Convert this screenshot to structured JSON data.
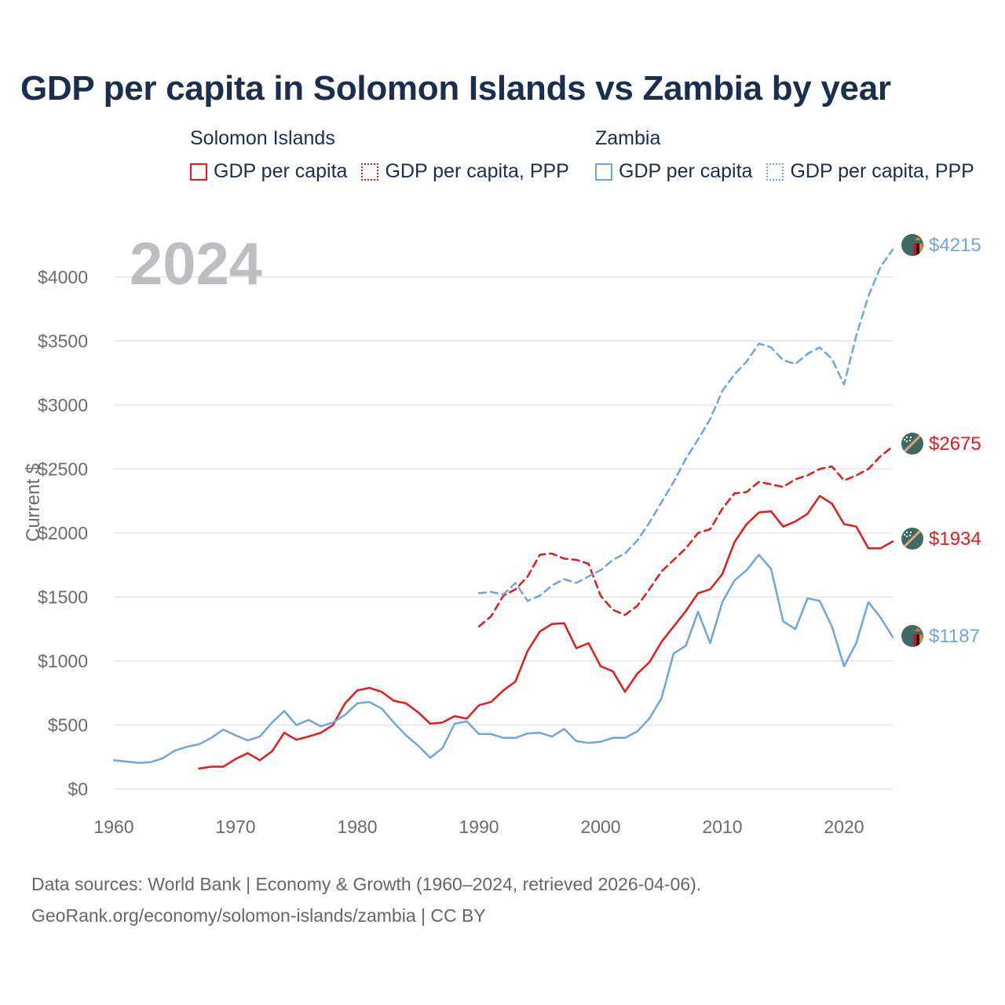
{
  "title": "GDP per capita in Solomon Islands vs Zambia by year",
  "legend": {
    "groups": [
      {
        "name": "Solomon Islands",
        "items": [
          {
            "label": "GDP per capita",
            "style": "solid",
            "color": "#e8191a"
          },
          {
            "label": "GDP per capita, PPP",
            "style": "dotted",
            "color": "#e8191a"
          }
        ]
      },
      {
        "name": "Zambia",
        "items": [
          {
            "label": "GDP per capita",
            "style": "solid",
            "color": "#6ea6de"
          },
          {
            "label": "GDP per capita, PPP",
            "style": "dotted",
            "color": "#6ea6de"
          }
        ]
      }
    ]
  },
  "year_label": "2024",
  "footer": {
    "line1": "Data sources: World Bank | Economy & Growth (1960–2024, retrieved 2026-04-06).",
    "line2": "GeoRank.org/economy/solomon-islands/zambia | CC BY"
  },
  "chart_data": {
    "type": "line",
    "ylabel": "Current $",
    "xlabel": "",
    "xlim": [
      1960,
      2024
    ],
    "ylim": [
      0,
      4250
    ],
    "x_ticks": [
      1960,
      1970,
      1980,
      1990,
      2000,
      2010,
      2020
    ],
    "y_ticks": [
      0,
      500,
      1000,
      1500,
      2000,
      2500,
      3000,
      3500,
      4000
    ],
    "y_tick_labels": [
      "$0",
      "$500",
      "$1000",
      "$1500",
      "$2000",
      "$2500",
      "$3000",
      "$3500",
      "$4000"
    ],
    "grid": true,
    "series": [
      {
        "name": "Solomon Islands GDP per capita",
        "country": "Solomon Islands",
        "color": "#e8191a",
        "dash": "solid",
        "end_label": "$1934",
        "x": [
          1967,
          1968,
          1969,
          1970,
          1971,
          1972,
          1973,
          1974,
          1975,
          1976,
          1977,
          1978,
          1979,
          1980,
          1981,
          1982,
          1983,
          1984,
          1985,
          1986,
          1987,
          1988,
          1989,
          1990,
          1991,
          1992,
          1993,
          1994,
          1995,
          1996,
          1997,
          1998,
          1999,
          2000,
          2001,
          2002,
          2003,
          2004,
          2005,
          2006,
          2007,
          2008,
          2009,
          2010,
          2011,
          2012,
          2013,
          2014,
          2015,
          2016,
          2017,
          2018,
          2019,
          2020,
          2021,
          2022,
          2023,
          2024
        ],
        "y": [
          160,
          175,
          175,
          235,
          280,
          225,
          295,
          440,
          385,
          410,
          440,
          500,
          670,
          770,
          790,
          760,
          690,
          670,
          600,
          510,
          520,
          570,
          550,
          655,
          680,
          770,
          840,
          1080,
          1230,
          1290,
          1295,
          1100,
          1140,
          960,
          920,
          760,
          900,
          990,
          1150,
          1270,
          1390,
          1530,
          1560,
          1680,
          1930,
          2070,
          2160,
          2170,
          2050,
          2090,
          2150,
          2290,
          2230,
          2070,
          2050,
          1880,
          1880,
          1934
        ]
      },
      {
        "name": "Solomon Islands GDP per capita, PPP",
        "country": "Solomon Islands",
        "color": "#e8191a",
        "dash": "dashed",
        "end_label": "$2675",
        "x": [
          1990,
          1991,
          1992,
          1993,
          1994,
          1995,
          1996,
          1997,
          1998,
          1999,
          2000,
          2001,
          2002,
          2003,
          2004,
          2005,
          2006,
          2007,
          2008,
          2009,
          2010,
          2011,
          2012,
          2013,
          2014,
          2015,
          2016,
          2017,
          2018,
          2019,
          2020,
          2021,
          2022,
          2023,
          2024
        ],
        "y": [
          1270,
          1350,
          1510,
          1560,
          1660,
          1830,
          1840,
          1800,
          1790,
          1760,
          1510,
          1400,
          1360,
          1430,
          1560,
          1700,
          1790,
          1880,
          2000,
          2030,
          2190,
          2310,
          2320,
          2400,
          2380,
          2360,
          2420,
          2450,
          2500,
          2520,
          2410,
          2450,
          2500,
          2600,
          2675
        ]
      },
      {
        "name": "Zambia GDP per capita",
        "country": "Zambia",
        "color": "#6ea6de",
        "dash": "solid",
        "end_label": "$1187",
        "x": [
          1960,
          1961,
          1962,
          1963,
          1964,
          1965,
          1966,
          1967,
          1968,
          1969,
          1970,
          1971,
          1972,
          1973,
          1974,
          1975,
          1976,
          1977,
          1978,
          1979,
          1980,
          1981,
          1982,
          1983,
          1984,
          1985,
          1986,
          1987,
          1988,
          1989,
          1990,
          1991,
          1992,
          1993,
          1994,
          1995,
          1996,
          1997,
          1998,
          1999,
          2000,
          2001,
          2002,
          2003,
          2004,
          2005,
          2006,
          2007,
          2008,
          2009,
          2010,
          2011,
          2012,
          2013,
          2014,
          2015,
          2016,
          2017,
          2018,
          2019,
          2020,
          2021,
          2022,
          2023,
          2024
        ],
        "y": [
          225,
          215,
          205,
          210,
          240,
          300,
          330,
          350,
          400,
          465,
          420,
          380,
          410,
          520,
          610,
          500,
          540,
          490,
          520,
          580,
          670,
          680,
          630,
          520,
          420,
          340,
          245,
          320,
          510,
          530,
          430,
          430,
          400,
          400,
          435,
          440,
          410,
          470,
          375,
          360,
          370,
          400,
          400,
          450,
          550,
          710,
          1060,
          1120,
          1385,
          1140,
          1460,
          1630,
          1710,
          1830,
          1720,
          1310,
          1250,
          1490,
          1470,
          1270,
          960,
          1140,
          1460,
          1340,
          1187
        ]
      },
      {
        "name": "Zambia GDP per capita, PPP",
        "country": "Zambia",
        "color": "#6ea6de",
        "dash": "dashed",
        "end_label": "$4215",
        "x": [
          1990,
          1991,
          1992,
          1993,
          1994,
          1995,
          1996,
          1997,
          1998,
          1999,
          2000,
          2001,
          2002,
          2003,
          2004,
          2005,
          2006,
          2007,
          2008,
          2009,
          2010,
          2011,
          2012,
          2013,
          2014,
          2015,
          2016,
          2017,
          2018,
          2019,
          2020,
          2021,
          2022,
          2023,
          2024
        ],
        "y": [
          1530,
          1540,
          1520,
          1610,
          1470,
          1510,
          1590,
          1640,
          1610,
          1660,
          1710,
          1790,
          1840,
          1940,
          2080,
          2240,
          2400,
          2580,
          2730,
          2890,
          3110,
          3240,
          3340,
          3480,
          3450,
          3350,
          3320,
          3400,
          3450,
          3360,
          3160,
          3540,
          3850,
          4080,
          4215
        ]
      }
    ]
  }
}
